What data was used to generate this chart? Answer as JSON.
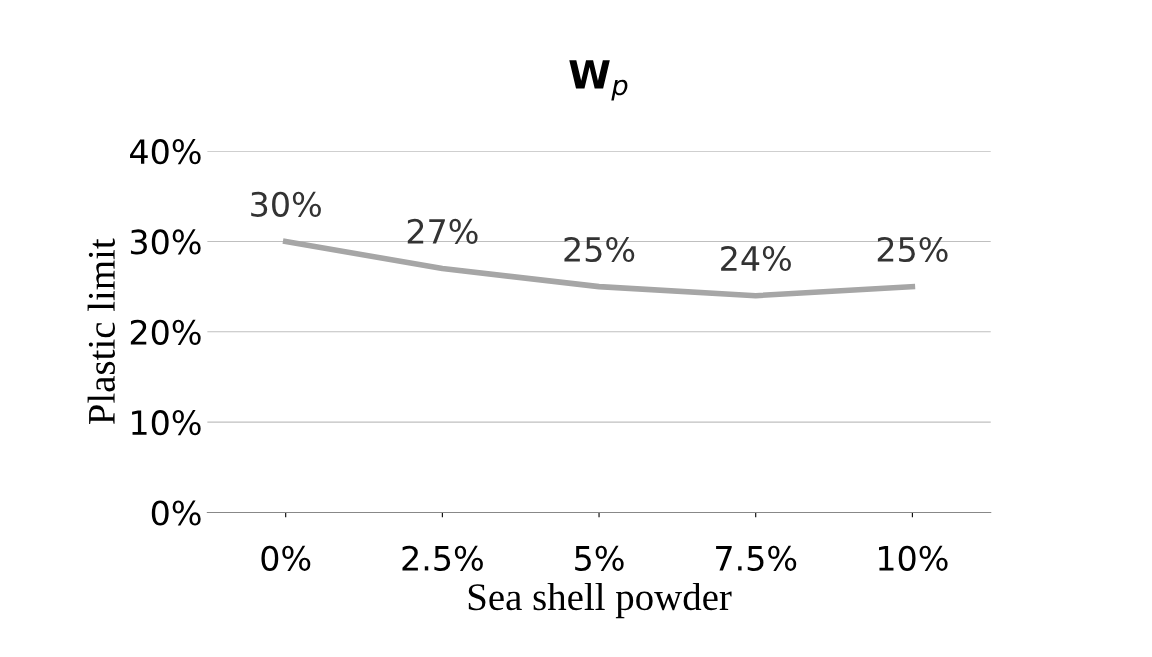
{
  "chart_data": {
    "type": "line",
    "title": "W$_{p}$",
    "xlabel": "Sea shell powder",
    "ylabel": "Plastic limit",
    "categories": [
      "0%",
      "2.5%",
      "5%",
      "7.5%",
      "10%"
    ],
    "series": [
      {
        "color": "#a6a6a6",
        "values": [
          30,
          27,
          25,
          24,
          25
        ],
        "value_labels": [
          "30%",
          "27%",
          "25%",
          "24%",
          "25%"
        ]
      }
    ],
    "ylim": [
      0,
      40
    ],
    "yticks": [
      {
        "value": 0,
        "label": "0%"
      },
      {
        "value": 10,
        "label": "10%"
      },
      {
        "value": 20,
        "label": "20%"
      },
      {
        "value": 30,
        "label": "30%"
      },
      {
        "value": 40,
        "label": "40%"
      }
    ],
    "grid": "y",
    "marker": "none",
    "line_style": "solid"
  }
}
